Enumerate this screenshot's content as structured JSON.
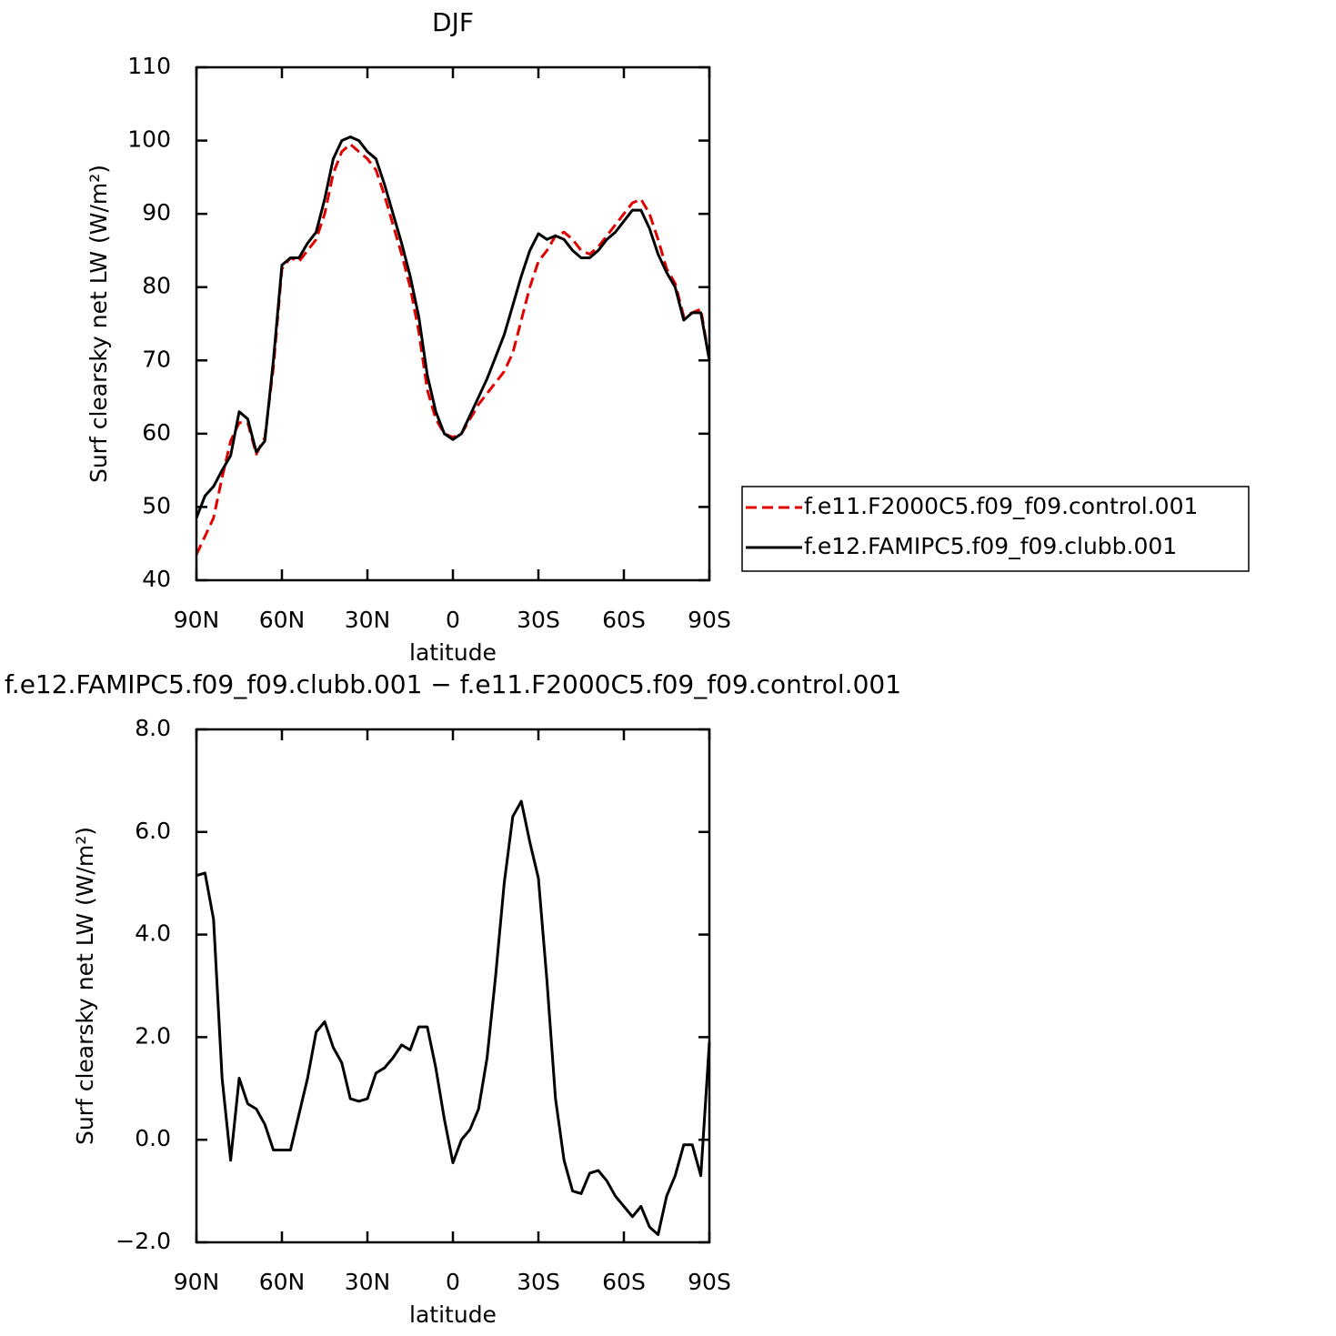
{
  "chart_data": [
    {
      "type": "line",
      "title": "DJF",
      "xlabel": "latitude",
      "ylabel": "Surf clearsky net LW (W/m²)",
      "xlim": [
        90,
        -90
      ],
      "ylim": [
        40,
        110
      ],
      "xticks": [
        {
          "value": 90,
          "label": "90N"
        },
        {
          "value": 60,
          "label": "60N"
        },
        {
          "value": 30,
          "label": "30N"
        },
        0,
        {
          "value": -30,
          "label": "30S"
        },
        {
          "value": -60,
          "label": "60S"
        },
        {
          "value": -90,
          "label": "90S"
        }
      ],
      "yticks": [
        40,
        50,
        60,
        70,
        80,
        90,
        100,
        110
      ],
      "legend": "right",
      "x": [
        90,
        87,
        84,
        81,
        78,
        75,
        72,
        69,
        66,
        63,
        60,
        57,
        54,
        51,
        48,
        45,
        42,
        39,
        36,
        33,
        30,
        27,
        24,
        21,
        18,
        15,
        12,
        9,
        6,
        3,
        0,
        -3,
        -6,
        -9,
        -12,
        -15,
        -18,
        -21,
        -24,
        -27,
        -30,
        -33,
        -36,
        -39,
        -42,
        -45,
        -48,
        -51,
        -54,
        -57,
        -60,
        -63,
        -66,
        -69,
        -72,
        -75,
        -78,
        -81,
        -84,
        -87,
        -90
      ],
      "series": [
        {
          "name": "f.e11.F2000C5.f09_f09.control.001",
          "color": "#e00000",
          "dash": "dashed",
          "values": [
            43.5,
            46,
            48.5,
            54,
            59,
            61.5,
            61.5,
            57.2,
            59.5,
            69,
            82.5,
            84,
            83.5,
            85,
            86.5,
            90,
            95.5,
            98.5,
            99.5,
            98.5,
            97.5,
            96,
            92.5,
            88.5,
            84.5,
            80,
            74,
            66,
            62,
            60,
            59.5,
            60,
            62,
            64,
            65.5,
            67,
            68.5,
            71,
            75.5,
            80,
            83.5,
            85,
            87,
            87.5,
            86.5,
            85,
            84.5,
            85.5,
            87,
            88.5,
            90,
            91.5,
            92,
            90,
            86.5,
            82.5,
            80.5,
            76,
            76.5,
            77,
            70
          ]
        },
        {
          "name": "f.e12.FAMIPC5.f09_f09.clubb.001",
          "color": "#000000",
          "dash": "solid",
          "values": [
            48.5,
            51.5,
            52.8,
            55,
            57,
            63,
            62,
            57.5,
            59,
            70,
            83,
            84,
            84,
            86,
            87.5,
            92,
            97.5,
            100,
            100.5,
            100,
            98.5,
            97.5,
            94,
            90,
            86,
            81.5,
            76,
            68,
            63,
            60,
            59.2,
            60,
            62.5,
            65,
            67.5,
            70.5,
            73.5,
            77.5,
            81.5,
            85,
            87.3,
            86.5,
            87,
            86.5,
            85,
            84,
            84,
            85,
            86.5,
            87.5,
            89,
            90.5,
            90.5,
            88,
            84.5,
            82,
            80,
            75.5,
            76.5,
            76.5,
            70
          ]
        }
      ]
    },
    {
      "type": "line",
      "title": "f.e12.FAMIPC5.f09_f09.clubb.001 − f.e11.F2000C5.f09_f09.control.001",
      "xlabel": "latitude",
      "ylabel": "Surf clearsky net LW (W/m²)",
      "xlim": [
        90,
        -90
      ],
      "ylim": [
        -2,
        8
      ],
      "xticks": [
        {
          "value": 90,
          "label": "90N"
        },
        {
          "value": 60,
          "label": "60N"
        },
        {
          "value": 30,
          "label": "30N"
        },
        0,
        {
          "value": -30,
          "label": "30S"
        },
        {
          "value": -60,
          "label": "60S"
        },
        {
          "value": -90,
          "label": "90S"
        }
      ],
      "yticks": [
        {
          "value": -2,
          "label": "−2.0"
        },
        {
          "value": 0,
          "label": "0.0"
        },
        {
          "value": 2,
          "label": "2.0"
        },
        {
          "value": 4,
          "label": "4.0"
        },
        {
          "value": 6,
          "label": "6.0"
        },
        {
          "value": 8,
          "label": "8.0"
        }
      ],
      "x": [
        90,
        87,
        84,
        81,
        78,
        75,
        72,
        69,
        66,
        63,
        60,
        57,
        54,
        51,
        48,
        45,
        42,
        39,
        36,
        33,
        30,
        27,
        24,
        21,
        18,
        15,
        12,
        9,
        6,
        3,
        0,
        -3,
        -6,
        -9,
        -12,
        -15,
        -18,
        -21,
        -24,
        -27,
        -30,
        -33,
        -36,
        -39,
        -42,
        -45,
        -48,
        -51,
        -54,
        -57,
        -60,
        -63,
        -66,
        -69,
        -72,
        -75,
        -78,
        -81,
        -84,
        -87,
        -90
      ],
      "series": [
        {
          "color": "#000000",
          "dash": "solid",
          "values": [
            5.15,
            5.2,
            4.3,
            1.2,
            -0.4,
            1.2,
            0.7,
            0.6,
            0.3,
            -0.2,
            -0.2,
            -0.2,
            0.5,
            1.2,
            2.1,
            2.3,
            1.8,
            1.5,
            0.8,
            0.75,
            0.8,
            1.3,
            1.4,
            1.6,
            1.85,
            1.75,
            2.2,
            2.2,
            1.4,
            0.4,
            -0.45,
            0,
            0.2,
            0.6,
            1.6,
            3.2,
            5,
            6.3,
            6.6,
            5.8,
            5.1,
            3.1,
            0.8,
            -0.4,
            -1,
            -1.05,
            -0.65,
            -0.6,
            -0.8,
            -1.1,
            -1.3,
            -1.5,
            -1.3,
            -1.7,
            -1.85,
            -1.1,
            -0.7,
            -0.1,
            -0.1,
            -0.7,
            1.9
          ]
        }
      ]
    }
  ]
}
